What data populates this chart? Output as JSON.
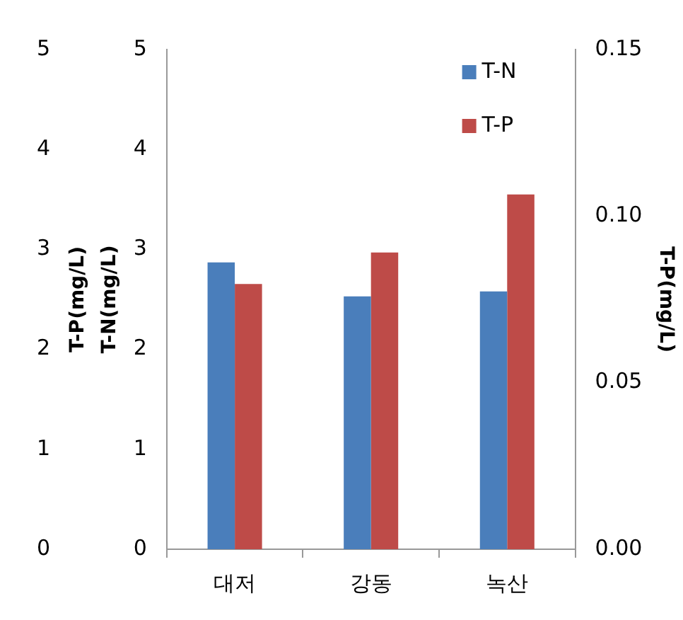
{
  "chart_data": {
    "type": "bar",
    "categories": [
      "대저",
      "강동",
      "녹산"
    ],
    "series": [
      {
        "name": "T-N",
        "color": "#4a7ebb",
        "values": [
          2.87,
          2.53,
          2.58
        ]
      },
      {
        "name": "T-P",
        "color": "#be4b48",
        "values": [
          0.0796,
          0.0891,
          0.1065
        ],
        "axis": "y2"
      }
    ],
    "ylabel": "T-N(mg/L)",
    "ylim": [
      0,
      5
    ],
    "yticks": [
      0,
      1,
      2,
      3,
      4,
      5
    ],
    "y2label": "T-P(mg/L)",
    "y2lim": [
      0,
      0.15
    ],
    "y2ticks": [
      {
        "value": 0,
        "label": "0.00"
      },
      {
        "value": 0.05,
        "label": "0.05"
      },
      {
        "value": 0.1,
        "label": "0.10"
      },
      {
        "value": 0.15,
        "label": "0.15"
      }
    ],
    "y3label": "T-P(mg/L)",
    "y3lim": [
      0,
      5
    ],
    "y3ticks": [
      0,
      1,
      2,
      3,
      4,
      5
    ],
    "legend": "top right",
    "grid": false
  }
}
